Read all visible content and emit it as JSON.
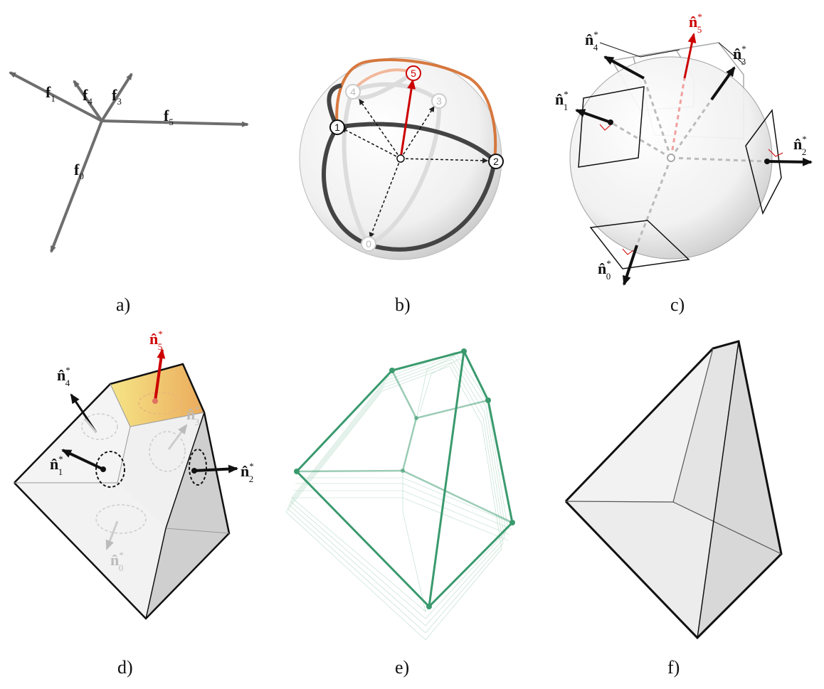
{
  "panels": {
    "a": {
      "caption": "a)",
      "vectors": [
        {
          "base": "f",
          "sub": "1"
        },
        {
          "base": "f",
          "sub": "4"
        },
        {
          "base": "f",
          "sub": "3"
        },
        {
          "base": "f",
          "sub": "5"
        },
        {
          "base": "f",
          "sub": "0"
        }
      ]
    },
    "b": {
      "caption": "b)",
      "nodes": [
        "1",
        "2",
        "3",
        "4",
        "5",
        "0"
      ]
    },
    "c": {
      "caption": "c)",
      "normals": [
        {
          "base": "n̂",
          "sub": "5",
          "sup": "*"
        },
        {
          "base": "n̂",
          "sub": "4",
          "sup": "*"
        },
        {
          "base": "n̂",
          "sub": "3",
          "sup": "*"
        },
        {
          "base": "n̂",
          "sub": "1",
          "sup": "*"
        },
        {
          "base": "n̂",
          "sub": "2",
          "sup": "*"
        },
        {
          "base": "n̂",
          "sub": "0",
          "sup": "*"
        }
      ]
    },
    "d": {
      "caption": "d)",
      "normals": [
        {
          "base": "n̂",
          "sub": "5",
          "sup": "*"
        },
        {
          "base": "n̂",
          "sub": "4",
          "sup": "*"
        },
        {
          "base": "n̂",
          "sub": "3",
          "sup": "*"
        },
        {
          "base": "n̂",
          "sub": "1",
          "sup": "*"
        },
        {
          "base": "n̂",
          "sub": "2",
          "sup": "*"
        },
        {
          "base": "n̂",
          "sub": "0",
          "sup": "*"
        }
      ]
    },
    "e": {
      "caption": "e)"
    },
    "f": {
      "caption": "f)"
    }
  },
  "colors": {
    "highlight": "#cc0000",
    "green": "#3a9a6e",
    "dark": "#111111",
    "grey": "#888888",
    "orange": "#d46a2a"
  }
}
